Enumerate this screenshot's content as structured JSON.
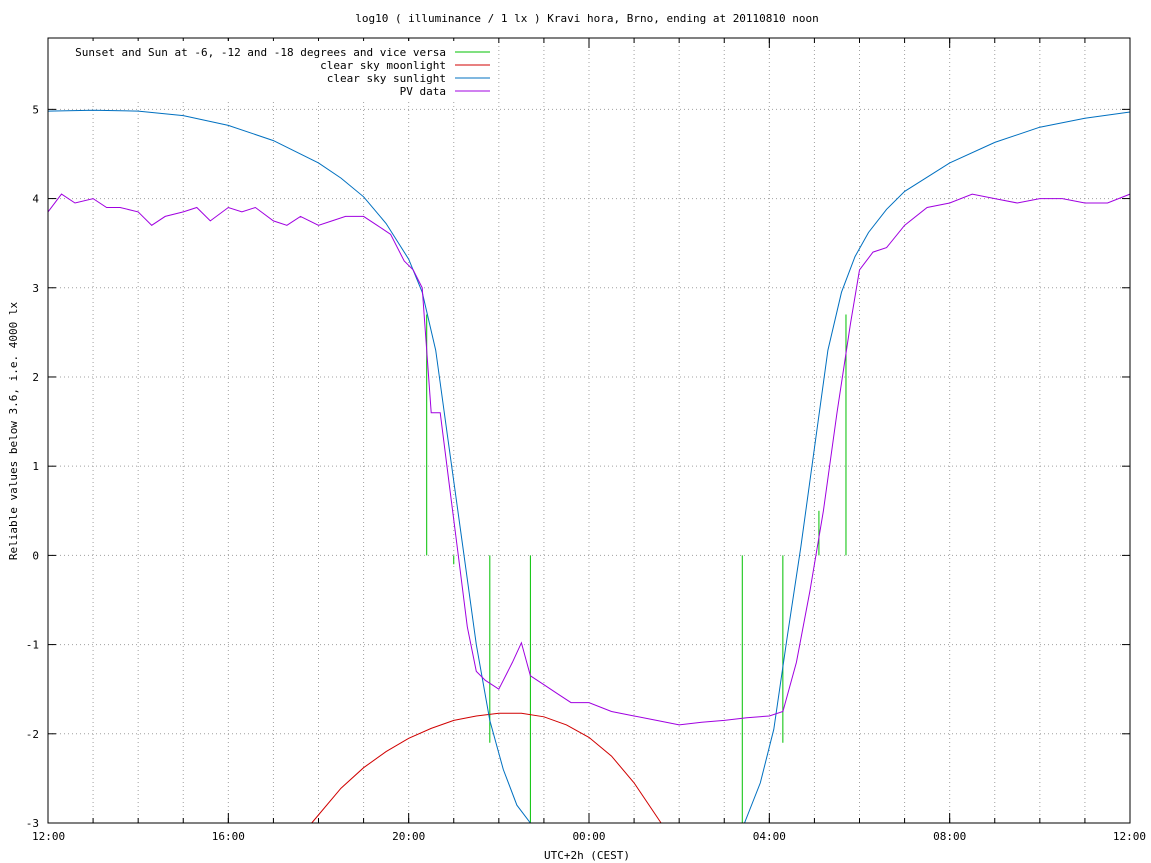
{
  "chart_data": {
    "type": "line",
    "title": "log10 ( illuminance / 1 lx ) Kravi hora, Brno, ending at 20110810 noon",
    "xlabel": "UTC+2h (CEST)",
    "ylabel": "Reliable values below 3.6, i.e. 4000 lx",
    "x_unit": "hours since 12:00 CEST on 2011-08-09",
    "xlim": [
      0,
      24
    ],
    "ylim": [
      -3,
      5.8
    ],
    "x_ticks": [
      {
        "x": 0,
        "label": "12:00"
      },
      {
        "x": 4,
        "label": "16:00"
      },
      {
        "x": 8,
        "label": "20:00"
      },
      {
        "x": 12,
        "label": "00:00"
      },
      {
        "x": 16,
        "label": "04:00"
      },
      {
        "x": 20,
        "label": "08:00"
      },
      {
        "x": 24,
        "label": "12:00"
      }
    ],
    "y_ticks": [
      -3,
      -2,
      -1,
      0,
      1,
      2,
      3,
      4,
      5
    ],
    "grid": true,
    "legend_position": "top-left",
    "series": [
      {
        "name": "Sunset and Sun at -6, -12 and -18 degrees and vice versa",
        "color": "#00c000",
        "kind": "impulses",
        "points": [
          {
            "x": 8.4,
            "y": 2.7
          },
          {
            "x": 9.0,
            "y": -0.1
          },
          {
            "x": 9.8,
            "y": -2.1
          },
          {
            "x": 10.7,
            "y": -3.0
          },
          {
            "x": 15.4,
            "y": -3.0
          },
          {
            "x": 16.3,
            "y": -2.1
          },
          {
            "x": 17.1,
            "y": 0.5
          },
          {
            "x": 17.7,
            "y": 2.7
          }
        ]
      },
      {
        "name": "clear sky moonlight",
        "color": "#d00000",
        "x": [
          5.85,
          6.5,
          7.0,
          7.5,
          8.0,
          8.5,
          9.0,
          9.5,
          10.0,
          10.5,
          11.0,
          11.5,
          12.0,
          12.5,
          13.0,
          13.6
        ],
        "y": [
          -3.0,
          -2.61,
          -2.38,
          -2.2,
          -2.05,
          -1.94,
          -1.85,
          -1.8,
          -1.77,
          -1.77,
          -1.81,
          -1.9,
          -2.04,
          -2.25,
          -2.55,
          -3.0
        ]
      },
      {
        "name": "clear sky sunlight",
        "color": "#0070c0",
        "x": [
          0,
          1,
          2,
          3,
          4,
          5,
          6,
          6.5,
          7,
          7.5,
          8,
          8.3,
          8.6,
          8.9,
          9.2,
          9.5,
          9.8,
          10.1,
          10.4,
          10.7,
          15.45,
          15.8,
          16.1,
          16.4,
          16.7,
          17.0,
          17.3,
          17.6,
          17.9,
          18.2,
          18.6,
          19,
          20,
          21,
          22,
          23,
          24
        ],
        "y": [
          4.98,
          4.99,
          4.98,
          4.93,
          4.82,
          4.65,
          4.4,
          4.23,
          4.02,
          3.72,
          3.32,
          2.95,
          2.3,
          1.2,
          0.1,
          -1.0,
          -1.85,
          -2.4,
          -2.8,
          -3.0,
          -3.0,
          -2.55,
          -1.95,
          -0.9,
          0.1,
          1.2,
          2.3,
          2.95,
          3.35,
          3.62,
          3.88,
          4.08,
          4.4,
          4.63,
          4.8,
          4.9,
          4.97
        ]
      },
      {
        "name": "PV data",
        "color": "#a000e0",
        "x": [
          0,
          0.3,
          0.6,
          1.0,
          1.3,
          1.6,
          2.0,
          2.3,
          2.6,
          3.0,
          3.3,
          3.6,
          4.0,
          4.3,
          4.6,
          5.0,
          5.3,
          5.6,
          6.0,
          6.3,
          6.6,
          7.0,
          7.3,
          7.6,
          7.9,
          8.1,
          8.3,
          8.5,
          8.7,
          8.9,
          9.1,
          9.3,
          9.5,
          9.7,
          10.0,
          10.3,
          10.5,
          10.7,
          11.0,
          11.3,
          11.6,
          12.0,
          12.5,
          13.0,
          13.5,
          14.0,
          14.5,
          15.0,
          15.5,
          16.0,
          16.3,
          16.6,
          16.9,
          17.2,
          17.5,
          17.8,
          18.0,
          18.3,
          18.6,
          19.0,
          19.5,
          20.0,
          20.5,
          21.0,
          21.5,
          22.0,
          22.5,
          23.0,
          23.5,
          24.0
        ],
        "y": [
          3.85,
          4.05,
          3.95,
          4.0,
          3.9,
          3.9,
          3.85,
          3.7,
          3.8,
          3.85,
          3.9,
          3.75,
          3.9,
          3.85,
          3.9,
          3.75,
          3.7,
          3.8,
          3.7,
          3.75,
          3.8,
          3.8,
          3.7,
          3.6,
          3.3,
          3.2,
          3.0,
          1.6,
          1.6,
          0.8,
          0.0,
          -0.8,
          -1.3,
          -1.4,
          -1.5,
          -1.2,
          -0.98,
          -1.35,
          -1.45,
          -1.55,
          -1.65,
          -1.65,
          -1.75,
          -1.8,
          -1.85,
          -1.9,
          -1.87,
          -1.85,
          -1.82,
          -1.8,
          -1.75,
          -1.2,
          -0.4,
          0.5,
          1.6,
          2.6,
          3.2,
          3.4,
          3.45,
          3.7,
          3.9,
          3.95,
          4.05,
          4.0,
          3.95,
          4.0,
          4.0,
          3.95,
          3.95,
          4.05
        ]
      }
    ]
  }
}
